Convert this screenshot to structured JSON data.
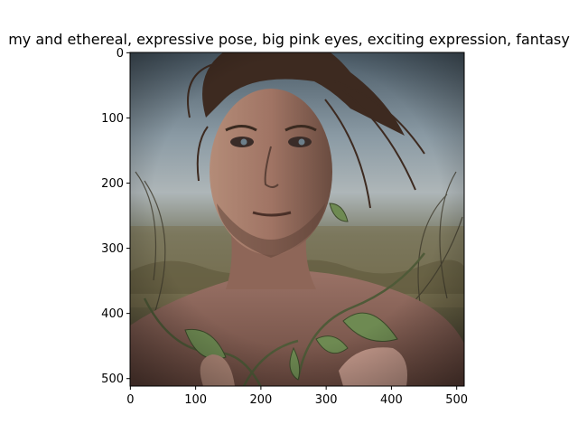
{
  "chart_data": {
    "type": "image",
    "title": "my and ethereal, expressive pose, big pink eyes, exciting expression, fantasy",
    "subject": "portrait of a shirtless man with wind-swept hair holding green vines in a field",
    "x_ticks": [
      0,
      100,
      200,
      300,
      400,
      500
    ],
    "y_ticks": [
      0,
      100,
      200,
      300,
      400,
      500
    ],
    "xlim": [
      -0.5,
      511.5
    ],
    "ylim": [
      511.5,
      -0.5
    ],
    "image_size": [
      512,
      512
    ]
  }
}
